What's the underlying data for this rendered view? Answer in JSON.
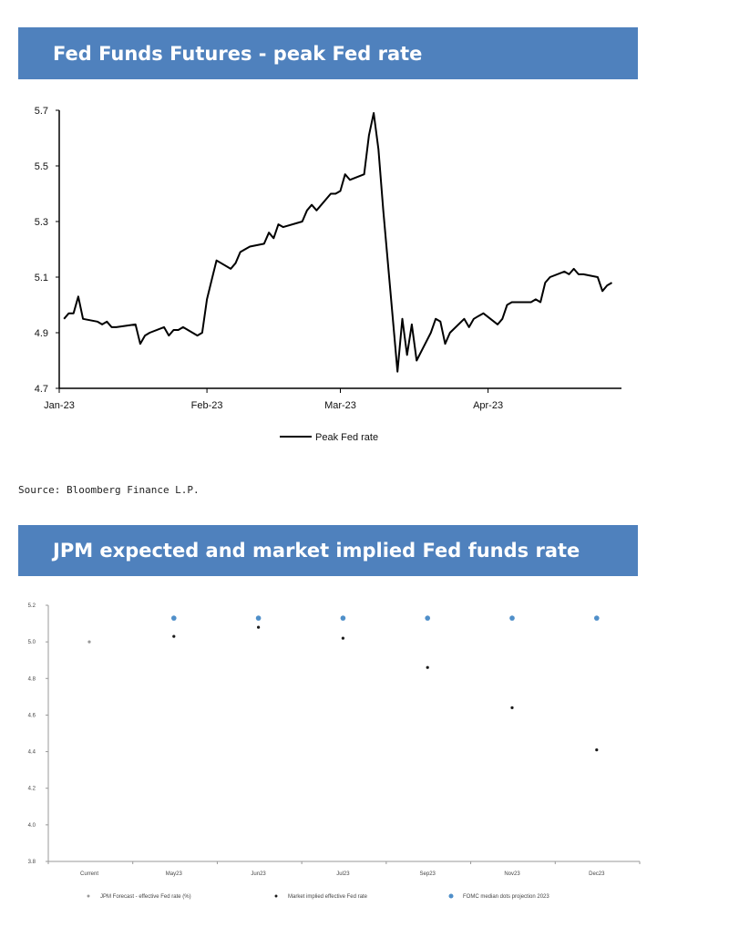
{
  "chart_data": [
    {
      "type": "line",
      "title": "Fed Funds Futures - peak Fed rate",
      "x_tick_labels": [
        "Jan-23",
        "Feb-23",
        "Mar-23",
        "Apr-23"
      ],
      "x_ticks": [
        "2023-01-01",
        "2023-02-01",
        "2023-03-01",
        "2023-04-01"
      ],
      "ylim": [
        4.7,
        5.7
      ],
      "y_ticks": [
        4.7,
        4.9,
        5.1,
        5.3,
        5.5,
        5.7
      ],
      "legend": "bottom",
      "grid": false,
      "series": [
        {
          "name": "Peak Fed rate",
          "color": "#000000",
          "points": [
            [
              "2023-01-02",
              4.95
            ],
            [
              "2023-01-03",
              4.97
            ],
            [
              "2023-01-04",
              4.97
            ],
            [
              "2023-01-05",
              5.03
            ],
            [
              "2023-01-06",
              4.95
            ],
            [
              "2023-01-09",
              4.94
            ],
            [
              "2023-01-10",
              4.93
            ],
            [
              "2023-01-11",
              4.94
            ],
            [
              "2023-01-12",
              4.92
            ],
            [
              "2023-01-13",
              4.92
            ],
            [
              "2023-01-17",
              4.93
            ],
            [
              "2023-01-18",
              4.86
            ],
            [
              "2023-01-19",
              4.89
            ],
            [
              "2023-01-20",
              4.9
            ],
            [
              "2023-01-23",
              4.92
            ],
            [
              "2023-01-24",
              4.89
            ],
            [
              "2023-01-25",
              4.91
            ],
            [
              "2023-01-26",
              4.91
            ],
            [
              "2023-01-27",
              4.92
            ],
            [
              "2023-01-30",
              4.89
            ],
            [
              "2023-01-31",
              4.9
            ],
            [
              "2023-02-01",
              5.02
            ],
            [
              "2023-02-02",
              5.09
            ],
            [
              "2023-02-03",
              5.16
            ],
            [
              "2023-02-06",
              5.13
            ],
            [
              "2023-02-07",
              5.15
            ],
            [
              "2023-02-08",
              5.19
            ],
            [
              "2023-02-09",
              5.2
            ],
            [
              "2023-02-10",
              5.21
            ],
            [
              "2023-02-13",
              5.22
            ],
            [
              "2023-02-14",
              5.26
            ],
            [
              "2023-02-15",
              5.24
            ],
            [
              "2023-02-16",
              5.29
            ],
            [
              "2023-02-17",
              5.28
            ],
            [
              "2023-02-21",
              5.3
            ],
            [
              "2023-02-22",
              5.34
            ],
            [
              "2023-02-23",
              5.36
            ],
            [
              "2023-02-24",
              5.34
            ],
            [
              "2023-02-27",
              5.4
            ],
            [
              "2023-02-28",
              5.4
            ],
            [
              "2023-03-01",
              5.41
            ],
            [
              "2023-03-02",
              5.47
            ],
            [
              "2023-03-03",
              5.45
            ],
            [
              "2023-03-06",
              5.47
            ],
            [
              "2023-03-07",
              5.61
            ],
            [
              "2023-03-08",
              5.69
            ],
            [
              "2023-03-09",
              5.56
            ],
            [
              "2023-03-10",
              5.34
            ],
            [
              "2023-03-13",
              4.76
            ],
            [
              "2023-03-14",
              4.95
            ],
            [
              "2023-03-15",
              4.82
            ],
            [
              "2023-03-16",
              4.93
            ],
            [
              "2023-03-17",
              4.8
            ],
            [
              "2023-03-20",
              4.9
            ],
            [
              "2023-03-21",
              4.95
            ],
            [
              "2023-03-22",
              4.94
            ],
            [
              "2023-03-23",
              4.86
            ],
            [
              "2023-03-24",
              4.9
            ],
            [
              "2023-03-27",
              4.95
            ],
            [
              "2023-03-28",
              4.92
            ],
            [
              "2023-03-29",
              4.95
            ],
            [
              "2023-03-30",
              4.96
            ],
            [
              "2023-03-31",
              4.97
            ],
            [
              "2023-04-03",
              4.93
            ],
            [
              "2023-04-04",
              4.95
            ],
            [
              "2023-04-05",
              5.0
            ],
            [
              "2023-04-06",
              5.01
            ],
            [
              "2023-04-10",
              5.01
            ],
            [
              "2023-04-11",
              5.02
            ],
            [
              "2023-04-12",
              5.01
            ],
            [
              "2023-04-13",
              5.08
            ],
            [
              "2023-04-14",
              5.1
            ],
            [
              "2023-04-17",
              5.12
            ],
            [
              "2023-04-18",
              5.11
            ],
            [
              "2023-04-19",
              5.13
            ],
            [
              "2023-04-20",
              5.11
            ],
            [
              "2023-04-21",
              5.11
            ],
            [
              "2023-04-24",
              5.1
            ],
            [
              "2023-04-25",
              5.05
            ],
            [
              "2023-04-26",
              5.07
            ],
            [
              "2023-04-27",
              5.08
            ]
          ]
        }
      ]
    },
    {
      "type": "scatter",
      "title": "JPM expected and market implied Fed funds rate",
      "categories": [
        "Current",
        "May23",
        "Jun23",
        "Jul23",
        "Sep23",
        "Nov23",
        "Dec23"
      ],
      "ylim": [
        3.8,
        5.2
      ],
      "y_ticks": [
        3.8,
        4.0,
        4.2,
        4.4,
        4.6,
        4.8,
        5.0,
        5.2
      ],
      "y_tick_labels": [
        "3.8",
        "4.0",
        "4.2",
        "4.4",
        "4.6",
        "4.8",
        "5.0",
        "5.2"
      ],
      "legend": "bottom",
      "grid": false,
      "series": [
        {
          "name": "JPM Forecast - effective Fed rate (%)",
          "color": "#999999",
          "values": [
            5.0,
            null,
            null,
            null,
            null,
            null,
            null
          ]
        },
        {
          "name": "Market implied effective Fed rate",
          "color": "#1a1a1a",
          "values": [
            null,
            5.03,
            5.08,
            5.02,
            4.86,
            4.64,
            4.41
          ]
        },
        {
          "name": "FOMC median dots projection 2023",
          "color": "#4f8fc9",
          "values": [
            null,
            5.13,
            5.13,
            5.13,
            5.13,
            5.13,
            5.13
          ]
        }
      ]
    }
  ],
  "source": "Source: Bloomberg Finance L.P."
}
